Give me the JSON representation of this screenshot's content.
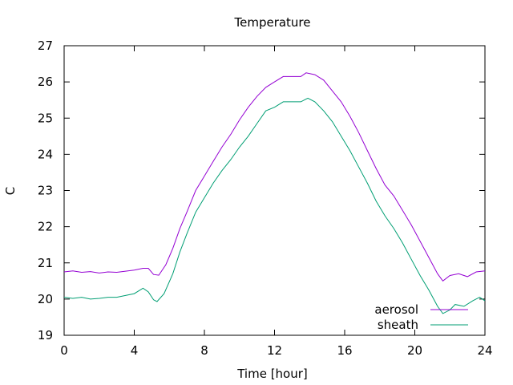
{
  "chart_data": {
    "type": "line",
    "title": "Temperature",
    "xlabel": "Time [hour]",
    "ylabel": "C",
    "xlim": [
      0,
      24
    ],
    "ylim": [
      19,
      27
    ],
    "xticks": [
      0,
      4,
      8,
      12,
      16,
      20,
      24
    ],
    "yticks": [
      19,
      20,
      21,
      22,
      23,
      24,
      25,
      26,
      27
    ],
    "grid": false,
    "legend_position": "bottom-right",
    "series": [
      {
        "name": "aerosol",
        "color": "#9400d3",
        "points": [
          [
            0,
            20.75
          ],
          [
            0.5,
            20.78
          ],
          [
            1,
            20.74
          ],
          [
            1.5,
            20.76
          ],
          [
            2,
            20.72
          ],
          [
            2.5,
            20.75
          ],
          [
            3,
            20.74
          ],
          [
            3.5,
            20.77
          ],
          [
            4,
            20.8
          ],
          [
            4.5,
            20.85
          ],
          [
            4.8,
            20.85
          ],
          [
            5.1,
            20.68
          ],
          [
            5.4,
            20.66
          ],
          [
            5.8,
            20.95
          ],
          [
            6.2,
            21.4
          ],
          [
            6.6,
            21.95
          ],
          [
            7,
            22.4
          ],
          [
            7.5,
            23.0
          ],
          [
            8,
            23.4
          ],
          [
            8.5,
            23.8
          ],
          [
            9,
            24.2
          ],
          [
            9.5,
            24.55
          ],
          [
            10,
            24.95
          ],
          [
            10.5,
            25.3
          ],
          [
            11,
            25.6
          ],
          [
            11.5,
            25.85
          ],
          [
            12,
            26.0
          ],
          [
            12.5,
            26.15
          ],
          [
            13,
            26.15
          ],
          [
            13.5,
            26.15
          ],
          [
            13.8,
            26.25
          ],
          [
            14.3,
            26.2
          ],
          [
            14.8,
            26.05
          ],
          [
            15.3,
            25.75
          ],
          [
            15.8,
            25.45
          ],
          [
            16.3,
            25.05
          ],
          [
            16.8,
            24.6
          ],
          [
            17.3,
            24.1
          ],
          [
            17.8,
            23.6
          ],
          [
            18.3,
            23.15
          ],
          [
            18.8,
            22.85
          ],
          [
            19.3,
            22.45
          ],
          [
            19.8,
            22.05
          ],
          [
            20.3,
            21.6
          ],
          [
            20.8,
            21.15
          ],
          [
            21.3,
            20.7
          ],
          [
            21.6,
            20.5
          ],
          [
            22,
            20.65
          ],
          [
            22.5,
            20.7
          ],
          [
            23,
            20.62
          ],
          [
            23.5,
            20.75
          ],
          [
            24,
            20.78
          ]
        ]
      },
      {
        "name": "sheath",
        "color": "#009e73",
        "points": [
          [
            0,
            20.05
          ],
          [
            0.5,
            20.02
          ],
          [
            1,
            20.05
          ],
          [
            1.5,
            20.0
          ],
          [
            2,
            20.02
          ],
          [
            2.5,
            20.05
          ],
          [
            3,
            20.05
          ],
          [
            3.5,
            20.1
          ],
          [
            4,
            20.15
          ],
          [
            4.5,
            20.3
          ],
          [
            4.8,
            20.2
          ],
          [
            5.1,
            19.98
          ],
          [
            5.3,
            19.93
          ],
          [
            5.7,
            20.15
          ],
          [
            6.2,
            20.7
          ],
          [
            6.6,
            21.3
          ],
          [
            7,
            21.8
          ],
          [
            7.5,
            22.4
          ],
          [
            8,
            22.8
          ],
          [
            8.5,
            23.2
          ],
          [
            9,
            23.55
          ],
          [
            9.5,
            23.85
          ],
          [
            10,
            24.2
          ],
          [
            10.5,
            24.5
          ],
          [
            11,
            24.85
          ],
          [
            11.5,
            25.2
          ],
          [
            12,
            25.3
          ],
          [
            12.5,
            25.45
          ],
          [
            13,
            25.45
          ],
          [
            13.5,
            25.45
          ],
          [
            13.9,
            25.55
          ],
          [
            14.3,
            25.45
          ],
          [
            14.8,
            25.2
          ],
          [
            15.3,
            24.9
          ],
          [
            15.8,
            24.5
          ],
          [
            16.3,
            24.1
          ],
          [
            16.8,
            23.65
          ],
          [
            17.3,
            23.2
          ],
          [
            17.8,
            22.7
          ],
          [
            18.3,
            22.3
          ],
          [
            18.8,
            21.95
          ],
          [
            19.3,
            21.55
          ],
          [
            19.8,
            21.1
          ],
          [
            20.3,
            20.65
          ],
          [
            20.8,
            20.25
          ],
          [
            21.3,
            19.8
          ],
          [
            21.6,
            19.6
          ],
          [
            22,
            19.7
          ],
          [
            22.3,
            19.85
          ],
          [
            22.8,
            19.8
          ],
          [
            23.3,
            19.95
          ],
          [
            23.7,
            20.05
          ],
          [
            24,
            19.95
          ]
        ]
      }
    ]
  }
}
